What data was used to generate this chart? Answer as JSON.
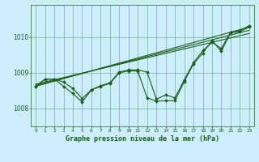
{
  "title": "Graphe pression niveau de la mer (hPa)",
  "bg_color": "#cceeff",
  "grid_color": "#3a7a3a",
  "line_color": "#1a5c1a",
  "marker_color": "#1a5c1a",
  "xlabel_color": "#1a5c1a",
  "xlim": [
    -0.5,
    23.5
  ],
  "ylim": [
    1007.5,
    1010.9
  ],
  "yticks": [
    1008,
    1009,
    1010
  ],
  "xtick_labels": [
    "0",
    "1",
    "2",
    "3",
    "4",
    "5",
    "6",
    "7",
    "8",
    "9",
    "10",
    "11",
    "12",
    "13",
    "14",
    "15",
    "16",
    "17",
    "18",
    "19",
    "20",
    "21",
    "22",
    "23"
  ],
  "series1_x": [
    0,
    1,
    2,
    3,
    4,
    5,
    6,
    7,
    8,
    9,
    10,
    11,
    12,
    13,
    14,
    15,
    16,
    17,
    18,
    19,
    20,
    21,
    22,
    23
  ],
  "series1_y": [
    1008.62,
    1008.82,
    1008.82,
    1008.74,
    1008.56,
    1008.28,
    1008.52,
    1008.62,
    1008.7,
    1009.0,
    1009.05,
    1009.05,
    1008.3,
    1008.2,
    1008.22,
    1008.22,
    1008.75,
    1009.25,
    1009.55,
    1009.9,
    1009.6,
    1010.12,
    1010.15,
    1010.28
  ],
  "series2_x": [
    0,
    1,
    2,
    3,
    4,
    5,
    6,
    7,
    8,
    9,
    10,
    11,
    12,
    13,
    14,
    15,
    16,
    17,
    18,
    19,
    20,
    21,
    22,
    23
  ],
  "series2_y": [
    1008.62,
    1008.82,
    1008.82,
    1008.62,
    1008.42,
    1008.18,
    1008.52,
    1008.64,
    1008.72,
    1009.02,
    1009.08,
    1009.08,
    1009.02,
    1008.26,
    1008.38,
    1008.3,
    1008.8,
    1009.28,
    1009.62,
    1009.85,
    1009.68,
    1010.14,
    1010.18,
    1010.32
  ],
  "trend1_x": [
    0,
    23
  ],
  "trend1_y": [
    1008.68,
    1010.1
  ],
  "trend2_x": [
    0,
    23
  ],
  "trend2_y": [
    1008.62,
    1010.28
  ],
  "trend3_x": [
    0,
    23
  ],
  "trend3_y": [
    1008.65,
    1010.19
  ]
}
